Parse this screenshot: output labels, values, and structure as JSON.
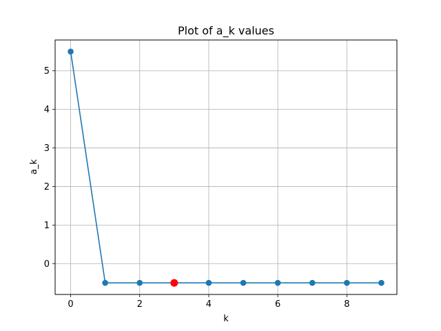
{
  "chart_data": {
    "type": "line",
    "title": "Plot of a_k values",
    "xlabel": "k",
    "ylabel": "a_k",
    "x": [
      0,
      1,
      2,
      3,
      4,
      5,
      6,
      7,
      8,
      9
    ],
    "series": [
      {
        "values": [
          5.5,
          -0.5,
          -0.5,
          -0.5,
          -0.5,
          -0.5,
          -0.5,
          -0.5,
          -0.5,
          -0.5
        ],
        "color": "#1f77b4"
      }
    ],
    "highlight": {
      "x": 3,
      "y": -0.5,
      "color": "#ff0000"
    },
    "xlim": [
      -0.45,
      9.45
    ],
    "ylim": [
      -0.8,
      5.8
    ],
    "xticks": [
      0,
      2,
      4,
      6,
      8
    ],
    "yticks": [
      0,
      1,
      2,
      3,
      4,
      5
    ],
    "grid": true,
    "legend": "none"
  }
}
